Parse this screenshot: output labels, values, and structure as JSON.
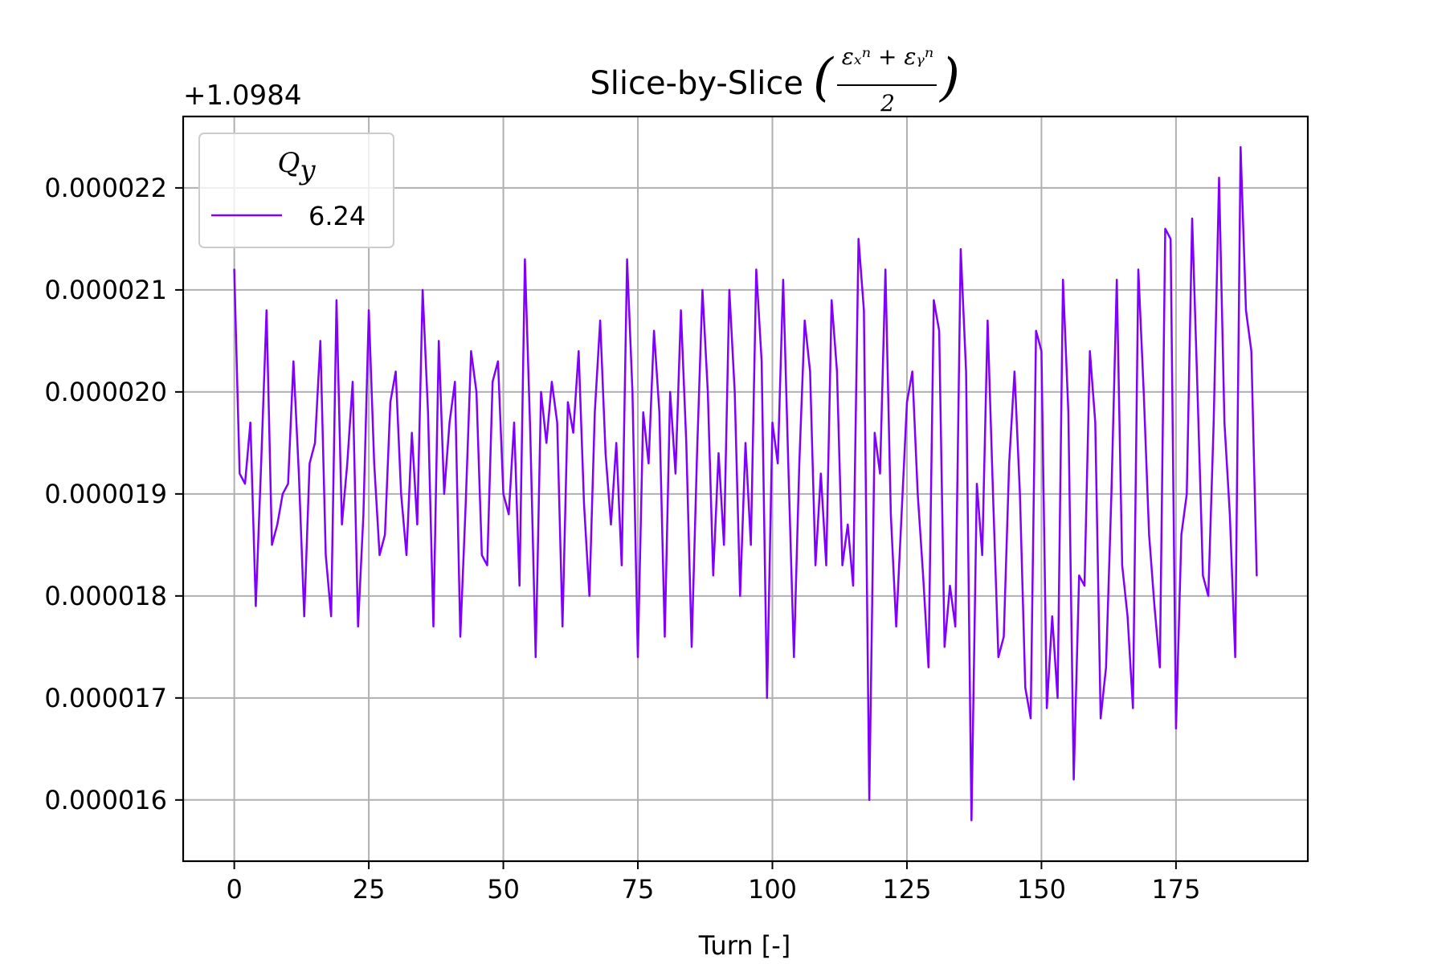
{
  "chart_data": {
    "type": "line",
    "title": "Slice-by-Slice",
    "title_math": {
      "numerator": "εₓⁿ + εᵧⁿ",
      "denominator": "2"
    },
    "xlabel": "Turn [-]",
    "ylabel": "",
    "y_offset_label": "+1.0984",
    "xlim": [
      -9.5,
      199.5
    ],
    "ylim": [
      1.54e-05,
      2.27e-05
    ],
    "x_ticks": [
      0,
      25,
      50,
      75,
      100,
      125,
      150,
      175
    ],
    "x_tick_labels": [
      "0",
      "25",
      "50",
      "75",
      "100",
      "125",
      "150",
      "175"
    ],
    "y_ticks": [
      1.6e-05,
      1.7e-05,
      1.8e-05,
      1.9e-05,
      2e-05,
      2.1e-05,
      2.2e-05
    ],
    "y_tick_labels": [
      "0.000016",
      "0.000017",
      "0.000018",
      "0.000019",
      "0.000020",
      "0.000021",
      "0.000022"
    ],
    "grid": true,
    "legend": {
      "title": "Q",
      "title_subscript": "y",
      "placement": "upper-left",
      "entries": [
        "6.24"
      ]
    },
    "series": [
      {
        "name": "6.24",
        "color": "#8000ff",
        "x": [
          0,
          1,
          2,
          3,
          4,
          5,
          6,
          7,
          8,
          9,
          10,
          11,
          12,
          13,
          14,
          15,
          16,
          17,
          18,
          19,
          20,
          21,
          22,
          23,
          24,
          25,
          26,
          27,
          28,
          29,
          30,
          31,
          32,
          33,
          34,
          35,
          36,
          37,
          38,
          39,
          40,
          41,
          42,
          43,
          44,
          45,
          46,
          47,
          48,
          49,
          50,
          51,
          52,
          53,
          54,
          55,
          56,
          57,
          58,
          59,
          60,
          61,
          62,
          63,
          64,
          65,
          66,
          67,
          68,
          69,
          70,
          71,
          72,
          73,
          74,
          75,
          76,
          77,
          78,
          79,
          80,
          81,
          82,
          83,
          84,
          85,
          86,
          87,
          88,
          89,
          90,
          91,
          92,
          93,
          94,
          95,
          96,
          97,
          98,
          99,
          100,
          101,
          102,
          103,
          104,
          105,
          106,
          107,
          108,
          109,
          110,
          111,
          112,
          113,
          114,
          115,
          116,
          117,
          118,
          119,
          120,
          121,
          122,
          123,
          124,
          125,
          126,
          127,
          128,
          129,
          130,
          131,
          132,
          133,
          134,
          135,
          136,
          137,
          138,
          139,
          140,
          141,
          142,
          143,
          144,
          145,
          146,
          147,
          148,
          149,
          150,
          151,
          152,
          153,
          154,
          155,
          156,
          157,
          158,
          159,
          160,
          161,
          162,
          163,
          164,
          165,
          166,
          167,
          168,
          169,
          170,
          171,
          172,
          173,
          174,
          175,
          176,
          177,
          178,
          179,
          180,
          181,
          182,
          183,
          184,
          185,
          186,
          187,
          188,
          189,
          190
        ],
        "y": [
          2.12e-05,
          1.92e-05,
          1.91e-05,
          1.97e-05,
          1.79e-05,
          1.93e-05,
          2.08e-05,
          1.85e-05,
          1.87e-05,
          1.9e-05,
          1.91e-05,
          2.03e-05,
          1.92e-05,
          1.78e-05,
          1.93e-05,
          1.95e-05,
          2.05e-05,
          1.84e-05,
          1.78e-05,
          2.09e-05,
          1.87e-05,
          1.93e-05,
          2.01e-05,
          1.77e-05,
          1.88e-05,
          2.08e-05,
          1.93e-05,
          1.84e-05,
          1.86e-05,
          1.99e-05,
          2.02e-05,
          1.9e-05,
          1.84e-05,
          1.96e-05,
          1.87e-05,
          2.1e-05,
          1.98e-05,
          1.77e-05,
          2.05e-05,
          1.9e-05,
          1.97e-05,
          2.01e-05,
          1.76e-05,
          1.89e-05,
          2.04e-05,
          2e-05,
          1.84e-05,
          1.83e-05,
          2.01e-05,
          2.03e-05,
          1.9e-05,
          1.88e-05,
          1.97e-05,
          1.81e-05,
          2.13e-05,
          1.96e-05,
          1.74e-05,
          2e-05,
          1.95e-05,
          2.01e-05,
          1.97e-05,
          1.77e-05,
          1.99e-05,
          1.96e-05,
          2.04e-05,
          1.89e-05,
          1.8e-05,
          1.98e-05,
          2.07e-05,
          1.94e-05,
          1.87e-05,
          1.95e-05,
          1.83e-05,
          2.13e-05,
          2e-05,
          1.74e-05,
          1.98e-05,
          1.93e-05,
          2.06e-05,
          1.98e-05,
          1.76e-05,
          2e-05,
          1.92e-05,
          2.08e-05,
          1.95e-05,
          1.75e-05,
          1.94e-05,
          2.1e-05,
          2e-05,
          1.82e-05,
          1.94e-05,
          1.85e-05,
          2.1e-05,
          2e-05,
          1.8e-05,
          1.95e-05,
          1.85e-05,
          2.12e-05,
          2.03e-05,
          1.7e-05,
          1.97e-05,
          1.93e-05,
          2.11e-05,
          1.92e-05,
          1.74e-05,
          1.93e-05,
          2.07e-05,
          2.02e-05,
          1.83e-05,
          1.92e-05,
          1.83e-05,
          2.09e-05,
          2.02e-05,
          1.83e-05,
          1.87e-05,
          1.81e-05,
          2.15e-05,
          2.08e-05,
          1.6e-05,
          1.96e-05,
          1.92e-05,
          2.12e-05,
          1.88e-05,
          1.77e-05,
          1.88e-05,
          1.99e-05,
          2.02e-05,
          1.9e-05,
          1.82e-05,
          1.73e-05,
          2.09e-05,
          2.06e-05,
          1.75e-05,
          1.81e-05,
          1.77e-05,
          2.14e-05,
          2.02e-05,
          1.58e-05,
          1.91e-05,
          1.84e-05,
          2.07e-05,
          1.9e-05,
          1.74e-05,
          1.76e-05,
          1.93e-05,
          2.02e-05,
          1.9e-05,
          1.71e-05,
          1.68e-05,
          2.06e-05,
          2.04e-05,
          1.69e-05,
          1.78e-05,
          1.7e-05,
          2.11e-05,
          1.98e-05,
          1.62e-05,
          1.82e-05,
          1.81e-05,
          2.04e-05,
          1.97e-05,
          1.68e-05,
          1.73e-05,
          1.9e-05,
          2.11e-05,
          1.83e-05,
          1.78e-05,
          1.69e-05,
          2.12e-05,
          2e-05,
          1.86e-05,
          1.79e-05,
          1.73e-05,
          2.16e-05,
          2.15e-05,
          1.67e-05,
          1.86e-05,
          1.9e-05,
          2.17e-05,
          2e-05,
          1.82e-05,
          1.8e-05,
          1.97e-05,
          2.21e-05,
          1.97e-05,
          1.88e-05,
          1.74e-05,
          2.24e-05,
          2.08e-05,
          2.04e-05,
          1.82e-05
        ]
      }
    ]
  }
}
